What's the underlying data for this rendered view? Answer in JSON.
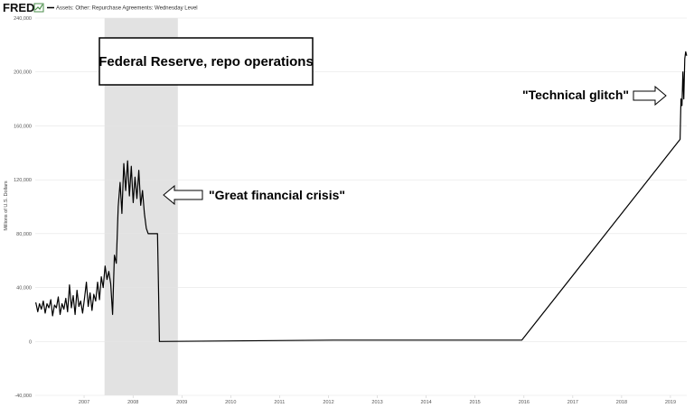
{
  "header": {
    "logo": "FRED",
    "legend_label": "Assets: Other: Repurchase Agreements: Wednesday Level"
  },
  "colors": {
    "line": "#000000",
    "recession": "#e2e2e2",
    "grid": "#e6e6e6",
    "logo_accent": "#4a8e4a"
  },
  "chart_data": {
    "type": "line",
    "title": "",
    "xlabel": "",
    "ylabel": "Millions of U.S. Dollars",
    "xlim": [
      "2006-07-01",
      "2019-10-31"
    ],
    "ylim": [
      -40000,
      240000
    ],
    "yticks": [
      -40000,
      0,
      40000,
      80000,
      120000,
      160000,
      200000,
      240000
    ],
    "ytick_labels": [
      "-40,000",
      "0",
      "40,000",
      "80,000",
      "120,000",
      "160,000",
      "200,000",
      "240,000"
    ],
    "xtick_labels": [
      "2007",
      "2008",
      "2009",
      "2010",
      "2011",
      "2012",
      "2013",
      "2014",
      "2015",
      "2016",
      "2017",
      "2018",
      "2019"
    ],
    "grid": true,
    "recession_shading": {
      "start": "2007-12-01",
      "end": "2009-06-01"
    },
    "series": [
      {
        "name": "Assets: Other: Repurchase Agreements: Wednesday Level",
        "x": [
          "2006-07-05",
          "2006-07-20",
          "2006-08-02",
          "2006-08-16",
          "2006-08-30",
          "2006-09-13",
          "2006-09-27",
          "2006-10-11",
          "2006-10-25",
          "2006-11-08",
          "2006-11-22",
          "2006-12-06",
          "2006-12-20",
          "2007-01-03",
          "2007-01-17",
          "2007-01-31",
          "2007-02-14",
          "2007-02-28",
          "2007-03-14",
          "2007-03-28",
          "2007-04-11",
          "2007-04-25",
          "2007-05-09",
          "2007-05-23",
          "2007-06-06",
          "2007-06-20",
          "2007-07-04",
          "2007-07-18",
          "2007-08-01",
          "2007-08-15",
          "2007-08-29",
          "2007-09-12",
          "2007-09-26",
          "2007-10-10",
          "2007-10-24",
          "2007-11-07",
          "2007-11-21",
          "2007-12-05",
          "2007-12-19",
          "2008-01-02",
          "2008-01-16",
          "2008-01-30",
          "2008-02-13",
          "2008-02-27",
          "2008-03-12",
          "2008-03-26",
          "2008-04-09",
          "2008-04-23",
          "2008-05-07",
          "2008-05-21",
          "2008-06-04",
          "2008-06-18",
          "2008-07-02",
          "2008-07-16",
          "2008-07-30",
          "2008-08-13",
          "2008-08-27",
          "2008-09-10",
          "2008-09-24",
          "2008-10-08",
          "2008-10-22",
          "2008-11-05",
          "2008-11-19",
          "2008-12-03",
          "2008-12-17",
          "2008-12-31",
          "2009-01-07",
          "2009-01-14",
          "2012-08-08",
          "2015-06-10",
          "2015-12-16",
          "2016-06-15",
          "2019-09-11",
          "2019-09-18",
          "2019-09-25",
          "2019-10-02",
          "2019-10-09",
          "2019-10-16",
          "2019-10-23",
          "2019-10-30"
        ],
        "y": [
          29000,
          22000,
          28000,
          24000,
          30000,
          21000,
          28000,
          25000,
          31000,
          19000,
          27000,
          25000,
          33000,
          20000,
          28000,
          24000,
          32000,
          22000,
          42000,
          25000,
          34000,
          20000,
          38000,
          26000,
          30000,
          21000,
          32000,
          44000,
          26000,
          36000,
          23000,
          35000,
          30000,
          44000,
          31000,
          48000,
          40000,
          56000,
          46000,
          52000,
          43000,
          20000,
          64000,
          58000,
          100000,
          118000,
          95000,
          132000,
          112000,
          134000,
          108000,
          130000,
          103000,
          122000,
          106000,
          127000,
          101000,
          112000,
          95000,
          84000,
          80000,
          80000,
          80000,
          80000,
          80000,
          80000,
          40000,
          0,
          1000,
          1000,
          1000,
          1000,
          150000,
          180000,
          175000,
          200000,
          180000,
          210000,
          215000,
          212000
        ]
      }
    ],
    "annotations": [
      {
        "text": "Federal Reserve, repo operations"
      },
      {
        "text": "\"Great financial crisis\""
      },
      {
        "text": "\"Technical glitch\""
      }
    ]
  }
}
